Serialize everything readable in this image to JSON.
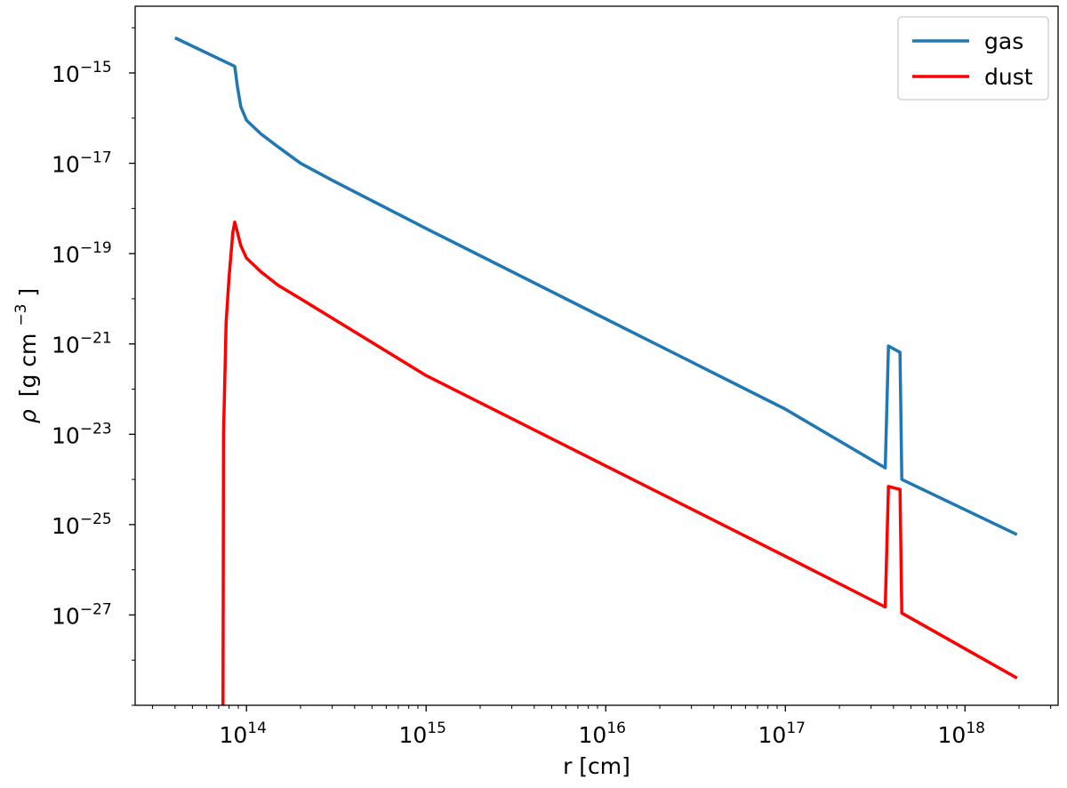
{
  "chart_data": {
    "type": "line",
    "xlabel": "r [cm]",
    "ylabel_symbol": "ρ",
    "ylabel_unit": "[g cm",
    "ylabel_exp": "−3",
    "ylabel_close": "]",
    "x_scale": "log",
    "y_scale": "log",
    "xlim": [
      24000000000000.0,
      3.3e+18
    ],
    "ylim": [
      1e-29,
      3e-14
    ],
    "x_ticks": [
      {
        "value": 100000000000000.0,
        "base": "10",
        "exp": "14"
      },
      {
        "value": 1000000000000000.0,
        "base": "10",
        "exp": "15"
      },
      {
        "value": 1e+16,
        "base": "10",
        "exp": "16"
      },
      {
        "value": 1e+17,
        "base": "10",
        "exp": "17"
      },
      {
        "value": 1e+18,
        "base": "10",
        "exp": "18"
      }
    ],
    "y_ticks": [
      {
        "value": 1e-15,
        "base": "10",
        "exp": "−15"
      },
      {
        "value": 1e-17,
        "base": "10",
        "exp": "−17"
      },
      {
        "value": 1e-19,
        "base": "10",
        "exp": "−19"
      },
      {
        "value": 1e-21,
        "base": "10",
        "exp": "−21"
      },
      {
        "value": 1e-23,
        "base": "10",
        "exp": "−23"
      },
      {
        "value": 1e-25,
        "base": "10",
        "exp": "−25"
      },
      {
        "value": 1e-27,
        "base": "10",
        "exp": "−27"
      }
    ],
    "grid": false,
    "legend_position": "top-right",
    "series": [
      {
        "name": "gas",
        "color": "#1f77b4",
        "points": [
          [
            40000000000000.0,
            6e-15
          ],
          [
            86000000000000.0,
            1.4e-15
          ],
          [
            89000000000000.0,
            5e-16
          ],
          [
            93000000000000.0,
            1.8e-16
          ],
          [
            100000000000000.0,
            9e-17
          ],
          [
            120000000000000.0,
            4.5e-17
          ],
          [
            150000000000000.0,
            2.3e-17
          ],
          [
            200000000000000.0,
            1e-17
          ],
          [
            300000000000000.0,
            4.2e-18
          ],
          [
            1000000000000000.0,
            3.6e-19
          ],
          [
            1e+16,
            3.6e-21
          ],
          [
            1e+17,
            3.6e-23
          ],
          [
            3.6e+17,
            1.8e-24
          ],
          [
            3.75e+17,
            9e-22
          ],
          [
            4.35e+17,
            6.5e-22
          ],
          [
            4.45e+17,
            1e-24
          ],
          [
            1.95e+18,
            6e-26
          ]
        ]
      },
      {
        "name": "dust",
        "color": "#ff0000",
        "points": [
          [
            74000000000000.0,
            1e-29
          ],
          [
            74500000000000.0,
            1e-23
          ],
          [
            77000000000000.0,
            3e-21
          ],
          [
            80000000000000.0,
            3e-20
          ],
          [
            84000000000000.0,
            3e-19
          ],
          [
            86000000000000.0,
            5e-19
          ],
          [
            89000000000000.0,
            3e-19
          ],
          [
            93000000000000.0,
            1.5e-19
          ],
          [
            100000000000000.0,
            8e-20
          ],
          [
            120000000000000.0,
            4e-20
          ],
          [
            150000000000000.0,
            2e-20
          ],
          [
            200000000000000.0,
            1e-20
          ],
          [
            1000000000000000.0,
            2e-22
          ],
          [
            1e+16,
            2e-24
          ],
          [
            1e+17,
            2e-26
          ],
          [
            3.6e+17,
            1.5e-27
          ],
          [
            3.75e+17,
            7e-25
          ],
          [
            4.35e+17,
            6e-25
          ],
          [
            4.45e+17,
            1.1e-27
          ],
          [
            1.95e+18,
            4e-29
          ]
        ]
      }
    ]
  }
}
